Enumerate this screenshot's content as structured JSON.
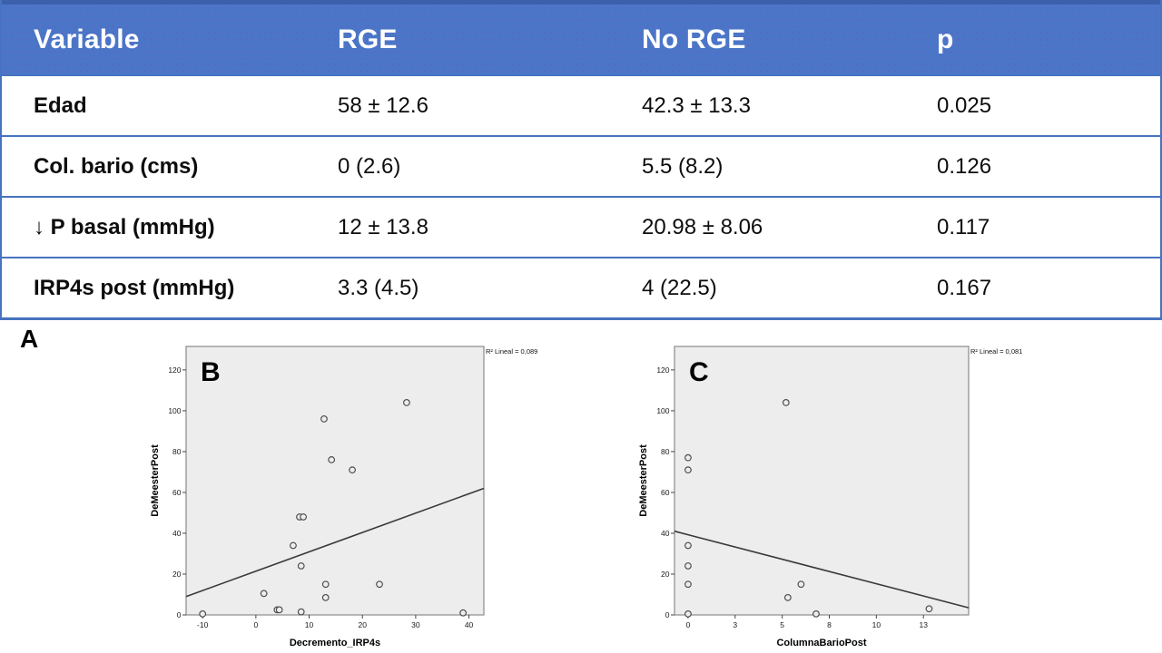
{
  "table": {
    "headers": [
      "Variable",
      "RGE",
      "No RGE",
      "p"
    ],
    "rows": [
      {
        "label": "Edad",
        "rge": "58 ± 12.6",
        "no_rge": "42.3 ± 13.3",
        "p": "0.025"
      },
      {
        "label": "Col. bario (cms)",
        "rge": "0 (2.6)",
        "no_rge": "5.5 (8.2)",
        "p": "0.126"
      },
      {
        "label": "↓ P basal (mmHg)",
        "rge": "12 ± 13.8",
        "no_rge": "20.98 ± 8.06",
        "p": "0.117"
      },
      {
        "label": "IRP4s post (mmHg)",
        "rge": "3.3 (4.5)",
        "no_rge": "4 (22.5)",
        "p": "0.167"
      }
    ]
  },
  "figure": {
    "section_label": "A"
  },
  "colors": {
    "header_blue": "#4B76C8",
    "border_blue": "#4673BF",
    "plot_bg": "#EDEDED",
    "plot_border": "#8A8A8A",
    "marker_stroke": "#4A4A4A",
    "trendline": "#3A3A3A",
    "tick_text": "#1a1a1a"
  },
  "chart_data": [
    {
      "type": "scatter",
      "panel": "B",
      "r2_annotation": "R² Lineal = 0,089",
      "xlabel": "Decremento_IRP4s",
      "ylabel": "DeMeesterPost",
      "xlim": [
        -13.1,
        42.8
      ],
      "ylim": [
        0,
        131.5
      ],
      "yticks": [
        0,
        20,
        40,
        60,
        80,
        100,
        120
      ],
      "xticks": [
        {
          "label": "-10",
          "v": -10
        },
        {
          "label": "0",
          "v": 0
        },
        {
          "label": "10",
          "v": 10
        },
        {
          "label": "20",
          "v": 20
        },
        {
          "label": "30",
          "v": 30
        },
        {
          "label": "40",
          "v": 40
        }
      ],
      "points": [
        [
          -10,
          0.5
        ],
        [
          1.5,
          10.5
        ],
        [
          4.0,
          2.5
        ],
        [
          4.4,
          2.5
        ],
        [
          7,
          34
        ],
        [
          8.2,
          48
        ],
        [
          8.9,
          48
        ],
        [
          8.5,
          24
        ],
        [
          8.5,
          1.5
        ],
        [
          12.8,
          96
        ],
        [
          13.1,
          15
        ],
        [
          13.1,
          8.5
        ],
        [
          14.2,
          76
        ],
        [
          18.1,
          71
        ],
        [
          23.2,
          15
        ],
        [
          28.3,
          104
        ],
        [
          38.9,
          1
        ]
      ],
      "trendline": {
        "x1": -13.1,
        "y1": 9,
        "x2": 42.8,
        "y2": 62
      },
      "legend_position": "none",
      "grid": false
    },
    {
      "type": "scatter",
      "panel": "C",
      "r2_annotation": "R² Lineal = 0,081",
      "xlabel": "ColumnaBarioPost",
      "ylabel": "DeMeesterPost",
      "xlim": [
        -0.72,
        14.9
      ],
      "ylim": [
        0,
        131.5
      ],
      "yticks": [
        0,
        20,
        40,
        60,
        80,
        100,
        120
      ],
      "xticks": [
        {
          "label": "0",
          "v": 0
        },
        {
          "label": "3",
          "v": 2.5
        },
        {
          "label": "5",
          "v": 5
        },
        {
          "label": "8",
          "v": 7.5
        },
        {
          "label": "10",
          "v": 10
        },
        {
          "label": "13",
          "v": 12.5
        }
      ],
      "points": [
        [
          0,
          77
        ],
        [
          0,
          71
        ],
        [
          0,
          34
        ],
        [
          0,
          24
        ],
        [
          0,
          15
        ],
        [
          0,
          0.5
        ],
        [
          5.2,
          104
        ],
        [
          5.3,
          8.5
        ],
        [
          6.0,
          15
        ],
        [
          6.8,
          0.5
        ],
        [
          12.8,
          3
        ]
      ],
      "trendline": {
        "x1": -0.72,
        "y1": 41,
        "x2": 14.9,
        "y2": 3.5
      },
      "legend_position": "none",
      "grid": false
    }
  ]
}
